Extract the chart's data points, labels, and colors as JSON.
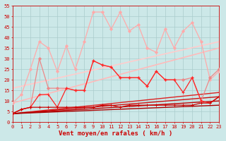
{
  "xlabel": "Vent moyen/en rafales ( km/h )",
  "xlim": [
    0,
    23
  ],
  "ylim": [
    0,
    55
  ],
  "yticks": [
    0,
    5,
    10,
    15,
    20,
    25,
    30,
    35,
    40,
    45,
    50,
    55
  ],
  "xticks": [
    0,
    1,
    2,
    3,
    4,
    5,
    6,
    7,
    8,
    9,
    10,
    11,
    12,
    13,
    14,
    15,
    16,
    17,
    18,
    19,
    20,
    21,
    22,
    23
  ],
  "bg_color": "#cce8e8",
  "grid_color": "#aacccc",
  "tick_color": "#cc0000",
  "label_color": "#cc0000",
  "tick_fontsize": 5.0,
  "xlabel_fontsize": 6.5,
  "series": [
    {
      "x": [
        0,
        1,
        2,
        3,
        4,
        5,
        6,
        7,
        8,
        9,
        10,
        11,
        12,
        13,
        14,
        15,
        16,
        17,
        18,
        19,
        20,
        21,
        22,
        23
      ],
      "y": [
        9,
        13,
        25,
        38,
        35,
        24,
        36,
        25,
        38,
        52,
        52,
        44,
        52,
        43,
        46,
        35,
        33,
        44,
        35,
        43,
        47,
        38,
        20,
        24
      ],
      "color": "#ffaaaa",
      "lw": 0.9,
      "marker": "D",
      "markersize": 2.0,
      "zorder": 3
    },
    {
      "x": [
        0,
        1,
        2,
        3,
        4,
        5,
        6,
        7,
        8,
        9,
        10,
        11,
        12,
        13,
        14,
        15,
        16,
        17,
        18,
        19,
        20,
        21,
        22,
        23
      ],
      "y": [
        4,
        6,
        7,
        30,
        16,
        16,
        16,
        15,
        15,
        29,
        27,
        26,
        21,
        21,
        21,
        17,
        24,
        20,
        20,
        20,
        21,
        10,
        21,
        25
      ],
      "color": "#ee8888",
      "lw": 0.9,
      "marker": "D",
      "markersize": 2.0,
      "zorder": 3
    },
    {
      "x": [
        0,
        1,
        2,
        3,
        4,
        5,
        6,
        7,
        8,
        9,
        10,
        11,
        12,
        13,
        14,
        15,
        16,
        17,
        18,
        19,
        20,
        21,
        22,
        23
      ],
      "y": [
        4,
        6,
        7,
        13,
        13,
        7,
        16,
        15,
        15,
        29,
        27,
        26,
        21,
        21,
        21,
        17,
        24,
        20,
        20,
        14,
        21,
        10,
        9,
        12
      ],
      "color": "#ff2222",
      "lw": 0.9,
      "marker": "+",
      "markersize": 3.0,
      "zorder": 4
    },
    {
      "x": [
        0,
        1,
        2,
        3,
        4,
        5,
        6,
        7,
        8,
        9,
        10,
        11,
        12,
        13,
        14,
        15,
        16,
        17,
        18,
        19,
        20,
        21,
        22,
        23
      ],
      "y": [
        4,
        6,
        7,
        7,
        7,
        7,
        7,
        7,
        7,
        7,
        8,
        8,
        7,
        8,
        8,
        8,
        8,
        8,
        8,
        8,
        8,
        9,
        9,
        12
      ],
      "color": "#cc0000",
      "lw": 0.9,
      "marker": "+",
      "markersize": 3.0,
      "zorder": 4
    },
    {
      "x": [
        0,
        23
      ],
      "y": [
        16,
        38
      ],
      "color": "#ffcccc",
      "lw": 1.2,
      "marker": null,
      "markersize": 0,
      "zorder": 2
    },
    {
      "x": [
        0,
        23
      ],
      "y": [
        9,
        35
      ],
      "color": "#ffbbbb",
      "lw": 1.2,
      "marker": null,
      "markersize": 0,
      "zorder": 2
    },
    {
      "x": [
        0,
        23
      ],
      "y": [
        4,
        14
      ],
      "color": "#dd2222",
      "lw": 1.0,
      "marker": null,
      "markersize": 0,
      "zorder": 2
    },
    {
      "x": [
        0,
        23
      ],
      "y": [
        4,
        12
      ],
      "color": "#cc1111",
      "lw": 1.0,
      "marker": null,
      "markersize": 0,
      "zorder": 2
    },
    {
      "x": [
        0,
        23
      ],
      "y": [
        4,
        10
      ],
      "color": "#bb0000",
      "lw": 1.0,
      "marker": null,
      "markersize": 0,
      "zorder": 2
    },
    {
      "x": [
        0,
        23
      ],
      "y": [
        4,
        8
      ],
      "color": "#aa0000",
      "lw": 1.0,
      "marker": null,
      "markersize": 0,
      "zorder": 2
    }
  ]
}
